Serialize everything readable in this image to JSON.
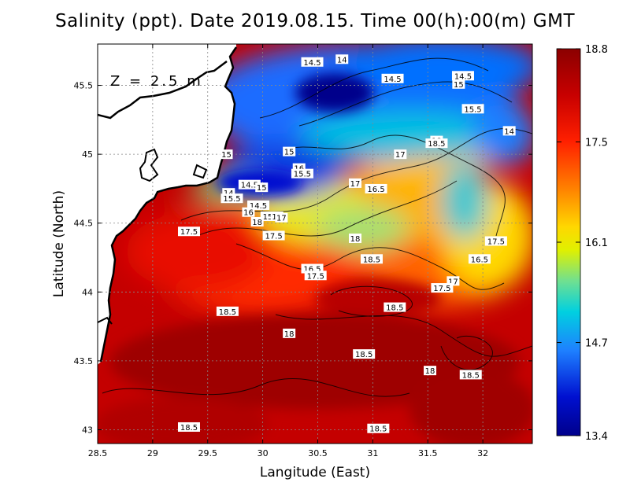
{
  "title": "Salinity (ppt). Date 2019.08.15. Time 00(h):00(m) GMT",
  "depth_label": "Z = 2.5 m",
  "x_axis": {
    "label": "Langitude (East)",
    "ticks": [
      "28.5",
      "29",
      "29.5",
      "30",
      "30.5",
      "31",
      "31.5",
      "32"
    ],
    "tick_values": [
      28.5,
      29,
      29.5,
      30,
      30.5,
      31,
      31.5,
      32
    ],
    "range": [
      28.5,
      32.45
    ]
  },
  "y_axis": {
    "label": "Latitude (North)",
    "ticks": [
      "43",
      "43.5",
      "44",
      "44.5",
      "45",
      "45.5"
    ],
    "tick_values": [
      43,
      43.5,
      44,
      44.5,
      45,
      45.5
    ],
    "range": [
      42.9,
      45.8
    ]
  },
  "colorbar": {
    "min": 13.4,
    "max": 18.8,
    "labels": [
      "18.8",
      "17.5",
      "16.1",
      "14.7",
      "13.4"
    ],
    "label_values": [
      18.8,
      17.5,
      16.1,
      14.7,
      13.4
    ],
    "colors": [
      "#8b0000",
      "#e31a1c",
      "#ff7f00",
      "#ffd700",
      "#e6f500",
      "#7fe08a",
      "#00c8e0",
      "#1e78ff",
      "#0000c8",
      "#00008b"
    ]
  },
  "contour_labels": [
    {
      "text": "14.5",
      "lon": 30.45,
      "lat": 45.67
    },
    {
      "text": "14",
      "lon": 30.72,
      "lat": 45.69
    },
    {
      "text": "14.5",
      "lon": 31.18,
      "lat": 45.55
    },
    {
      "text": "14.5",
      "lon": 31.82,
      "lat": 45.57
    },
    {
      "text": "15",
      "lon": 31.78,
      "lat": 45.51
    },
    {
      "text": "15.5",
      "lon": 31.91,
      "lat": 45.33
    },
    {
      "text": "14",
      "lon": 32.24,
      "lat": 45.17
    },
    {
      "text": "18",
      "lon": 31.58,
      "lat": 45.1
    },
    {
      "text": "18.5",
      "lon": 31.58,
      "lat": 45.08
    },
    {
      "text": "17",
      "lon": 31.25,
      "lat": 45.0
    },
    {
      "text": "15",
      "lon": 29.67,
      "lat": 45.0
    },
    {
      "text": "15",
      "lon": 30.24,
      "lat": 45.02
    },
    {
      "text": "16",
      "lon": 30.33,
      "lat": 44.9
    },
    {
      "text": "15.5",
      "lon": 30.36,
      "lat": 44.86
    },
    {
      "text": "17",
      "lon": 30.84,
      "lat": 44.79
    },
    {
      "text": "16.5",
      "lon": 31.03,
      "lat": 44.75
    },
    {
      "text": "14.5",
      "lon": 29.88,
      "lat": 44.78
    },
    {
      "text": "15",
      "lon": 29.99,
      "lat": 44.76
    },
    {
      "text": "14",
      "lon": 29.69,
      "lat": 44.72
    },
    {
      "text": "15.5",
      "lon": 29.72,
      "lat": 44.68
    },
    {
      "text": "14.5",
      "lon": 29.96,
      "lat": 44.63
    },
    {
      "text": "16",
      "lon": 29.87,
      "lat": 44.58
    },
    {
      "text": "15.5",
      "lon": 30.08,
      "lat": 44.55
    },
    {
      "text": "16",
      "lon": 30.13,
      "lat": 44.55
    },
    {
      "text": "17",
      "lon": 30.17,
      "lat": 44.54
    },
    {
      "text": "18",
      "lon": 29.95,
      "lat": 44.51
    },
    {
      "text": "17.5",
      "lon": 29.33,
      "lat": 44.44
    },
    {
      "text": "17.5",
      "lon": 30.1,
      "lat": 44.41
    },
    {
      "text": "18",
      "lon": 30.84,
      "lat": 44.39
    },
    {
      "text": "17.5",
      "lon": 32.12,
      "lat": 44.37
    },
    {
      "text": "16.5",
      "lon": 31.97,
      "lat": 44.24
    },
    {
      "text": "18.5",
      "lon": 30.99,
      "lat": 44.24
    },
    {
      "text": "16.5",
      "lon": 30.45,
      "lat": 44.17
    },
    {
      "text": "17.5",
      "lon": 30.48,
      "lat": 44.12
    },
    {
      "text": "17",
      "lon": 31.73,
      "lat": 44.08
    },
    {
      "text": "17.5",
      "lon": 31.63,
      "lat": 44.03
    },
    {
      "text": "18.5",
      "lon": 29.68,
      "lat": 43.86
    },
    {
      "text": "18.5",
      "lon": 31.2,
      "lat": 43.89
    },
    {
      "text": "18",
      "lon": 30.24,
      "lat": 43.7
    },
    {
      "text": "18.5",
      "lon": 30.92,
      "lat": 43.55
    },
    {
      "text": "18",
      "lon": 31.52,
      "lat": 43.43
    },
    {
      "text": "18.5",
      "lon": 31.89,
      "lat": 43.4
    },
    {
      "text": "18.5",
      "lon": 29.33,
      "lat": 43.02
    },
    {
      "text": "18.5",
      "lon": 31.05,
      "lat": 43.01
    }
  ]
}
